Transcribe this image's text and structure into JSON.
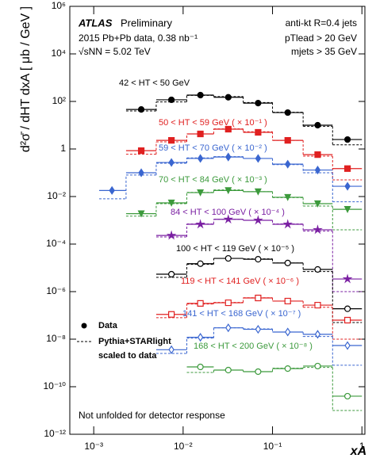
{
  "chart_data": {
    "type": "scatter",
    "y_label": "d²σ̄ / dHT dxA  [ μb / GeV ]",
    "x_label": "xA",
    "log_x": true,
    "log_y": true,
    "xlim": [
      0.00054,
      1.08
    ],
    "ylim": [
      1e-12,
      1000000.0
    ],
    "xticks": [
      {
        "value": 0.001,
        "label": "10⁻³"
      },
      {
        "value": 0.01,
        "label": "10⁻²"
      },
      {
        "value": 0.1,
        "label": "10⁻¹"
      },
      1
    ],
    "yticks": [
      {
        "value": 1e-12,
        "label": "10⁻¹²"
      },
      {
        "value": 1e-10,
        "label": "10⁻¹⁰"
      },
      {
        "value": 1e-08,
        "label": "10⁻⁸"
      },
      {
        "value": 1e-06,
        "label": "10⁻⁶"
      },
      {
        "value": 0.0001,
        "label": "10⁻⁴"
      },
      {
        "value": 0.01,
        "label": "10⁻²"
      },
      1,
      {
        "value": 100,
        "label": "10²"
      },
      {
        "value": 10000,
        "label": "10⁴"
      },
      {
        "value": 1000000,
        "label": "10⁶"
      }
    ],
    "bins": [
      0.00115,
      0.0023,
      0.005,
      0.011,
      0.022,
      0.047,
      0.1,
      0.22,
      0.47,
      1.0
    ],
    "x": [
      0.0016,
      0.0034,
      0.0074,
      0.0156,
      0.032,
      0.069,
      0.148,
      0.32,
      0.69
    ],
    "annotations": {
      "experiment": "ATLAS",
      "status": "Preliminary",
      "dataset": "2015 Pb+Pb data, 0.38 nb⁻¹",
      "energy": "√sNN = 5.02 TeV",
      "jets": "anti-kt R=0.4 jets",
      "pt_cut": "pTlead > 20 GeV",
      "mass_cut": "mjets > 35 GeV",
      "note": "Not unfolded for detector response"
    },
    "legend": [
      "Data",
      "Pythia+STARlight",
      "scaled to data"
    ],
    "series": [
      {
        "name": "42 < HT < 50 GeV",
        "color": "#000000",
        "marker": "circle",
        "open": false,
        "values": [
          null,
          46,
          117,
          185,
          150,
          85,
          34,
          10,
          2.5
        ],
        "mc": [
          null,
          40,
          95,
          180,
          160,
          90,
          35,
          9,
          1.5
        ]
      },
      {
        "name": "50 < HT < 59 GeV ( × 10⁻¹ )",
        "color": "#e02020",
        "marker": "square",
        "open": false,
        "values": [
          null,
          0.85,
          2.3,
          4.3,
          6.8,
          5,
          2.3,
          0.58,
          0.15
        ],
        "mc": [
          null,
          0.6,
          2.0,
          4.3,
          7,
          5.3,
          2.3,
          0.5,
          0.05
        ]
      },
      {
        "name": "59 < HT < 70 GeV ( × 10⁻² )",
        "color": "#3a66d0",
        "marker": "diamond",
        "open": false,
        "values": [
          0.018,
          0.1,
          0.27,
          0.4,
          0.46,
          0.4,
          0.23,
          0.13,
          0.027
        ],
        "mc": [
          0.008,
          0.08,
          0.25,
          0.42,
          0.48,
          0.4,
          0.22,
          0.1,
          0.006
        ]
      },
      {
        "name": "70 < HT < 84 GeV ( × 10⁻³ )",
        "color": "#3c9a3c",
        "marker": "triangle",
        "open": false,
        "values": [
          null,
          0.0019,
          0.0054,
          0.0146,
          0.018,
          0.016,
          0.0093,
          0.005,
          0.0029
        ],
        "mc": [
          null,
          0.0015,
          0.005,
          0.015,
          0.019,
          0.016,
          0.009,
          0.004,
          0.0004
        ]
      },
      {
        "name": "84 < HT < 100 GeV ( × 10⁻⁴ )",
        "color": "#7a1fa2",
        "marker": "star",
        "open": false,
        "values": [
          null,
          null,
          0.00023,
          0.00068,
          0.0011,
          0.001,
          0.00068,
          0.0004,
          3.4e-06
        ],
        "mc": [
          null,
          null,
          0.0002,
          0.0007,
          0.0011,
          0.001,
          0.0007,
          0.00035,
          1e-06
        ]
      },
      {
        "name": "100 < HT < 119 GeV ( × 10⁻⁵ )",
        "color": "#000000",
        "marker": "circle",
        "open": true,
        "values": [
          null,
          null,
          5.4e-06,
          1.5e-05,
          2.5e-05,
          2.3e-05,
          1.6e-05,
          8.6e-06,
          1.9e-07
        ],
        "mc": [
          null,
          null,
          4e-06,
          1.4e-05,
          2.5e-05,
          2.4e-05,
          1.6e-05,
          7e-06,
          5e-08
        ]
      },
      {
        "name": "119 < HT < 141 GeV ( × 10⁻⁶ )",
        "color": "#e02020",
        "marker": "square",
        "open": true,
        "values": [
          null,
          null,
          1.1e-07,
          3.2e-07,
          3.4e-07,
          5.4e-07,
          4e-07,
          2.7e-07,
          6.3e-08
        ],
        "mc": [
          null,
          null,
          8e-08,
          3e-07,
          3.5e-07,
          5.5e-07,
          4e-07,
          2.2e-07,
          1e-08
        ]
      },
      {
        "name": "141 < HT < 168 GeV ( × 10⁻⁷ )",
        "color": "#3a66d0",
        "marker": "diamond",
        "open": true,
        "values": [
          null,
          null,
          3.6e-09,
          1.2e-08,
          3e-08,
          2.6e-08,
          2e-08,
          1.6e-08,
          5.4e-09
        ],
        "mc": [
          null,
          null,
          2.5e-09,
          1.1e-08,
          3e-08,
          2.7e-08,
          2e-08,
          1.3e-08,
          8e-10
        ]
      },
      {
        "name": "168 < HT < 200 GeV ( × 10⁻⁸ )",
        "color": "#3c9a3c",
        "marker": "circle",
        "open": true,
        "values": [
          null,
          null,
          null,
          6.8e-10,
          5e-10,
          4.3e-10,
          5.8e-10,
          7.4e-10,
          4e-11
        ],
        "mc": [
          null,
          null,
          null,
          4e-10,
          5e-10,
          4.3e-10,
          6e-10,
          6.5e-10,
          1e-11
        ]
      }
    ]
  }
}
